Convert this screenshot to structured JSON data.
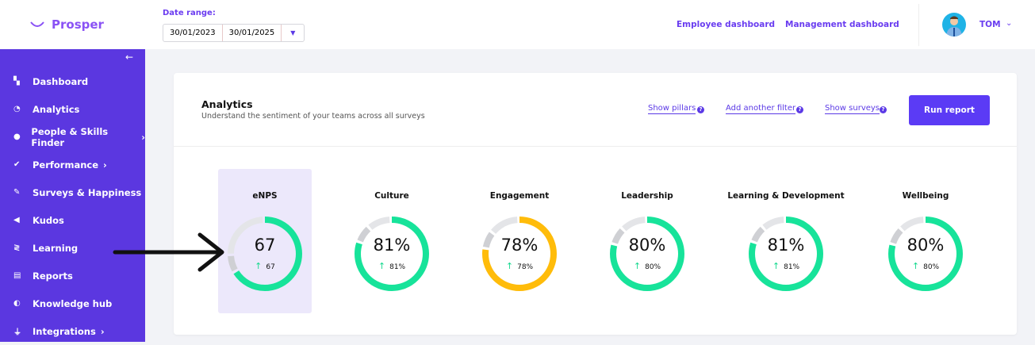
{
  "header": {
    "brand": "Prosper",
    "date_range_label": "Date range:",
    "date_from": "30/01/2023",
    "date_to": "30/01/2025",
    "links": [
      "Employee dashboard",
      "Management dashboard"
    ],
    "user_name": "TOM"
  },
  "sidebar": {
    "items": [
      {
        "label": "Dashboard",
        "icon": "dashboard-icon",
        "glyph": "▚",
        "chevron": false
      },
      {
        "label": "Analytics",
        "icon": "pie-chart-icon",
        "glyph": "◔",
        "chevron": false
      },
      {
        "label": "People & Skills Finder",
        "icon": "person-icon",
        "glyph": "●",
        "chevron": true
      },
      {
        "label": "Performance",
        "icon": "checks-icon",
        "glyph": "✔",
        "chevron": true
      },
      {
        "label": "Surveys & Happiness",
        "icon": "edit-icon",
        "glyph": "✎",
        "chevron": false
      },
      {
        "label": "Kudos",
        "icon": "megaphone-icon",
        "glyph": "◀",
        "chevron": false
      },
      {
        "label": "Learning",
        "icon": "learning-icon",
        "glyph": "≷",
        "chevron": false
      },
      {
        "label": "Reports",
        "icon": "document-icon",
        "glyph": "▤",
        "chevron": false
      },
      {
        "label": "Knowledge hub",
        "icon": "brain-icon",
        "glyph": "◐",
        "chevron": false
      },
      {
        "label": "Integrations",
        "icon": "plug-icon",
        "glyph": "⏚",
        "chevron": true
      }
    ]
  },
  "analytics": {
    "title": "Analytics",
    "subtitle": "Understand the sentiment of your teams across all surveys",
    "filters": [
      "Show pillars",
      "Add another filter",
      "Show surveys"
    ],
    "run_label": "Run report",
    "metrics": [
      {
        "title": "eNPS",
        "value": "67",
        "trend": "67",
        "fraction": 0.67,
        "color": "#17e39a",
        "selected": true
      },
      {
        "title": "Culture",
        "value": "81%",
        "trend": "81%",
        "fraction": 0.81,
        "color": "#17e39a"
      },
      {
        "title": "Engagement",
        "value": "78%",
        "trend": "78%",
        "fraction": 0.78,
        "color": "#ffbc0a"
      },
      {
        "title": "Leadership",
        "value": "80%",
        "trend": "80%",
        "fraction": 0.8,
        "color": "#17e39a"
      },
      {
        "title": "Learning & Development",
        "value": "81%",
        "trend": "81%",
        "fraction": 0.81,
        "color": "#17e39a"
      },
      {
        "title": "Wellbeing",
        "value": "80%",
        "trend": "80%",
        "fraction": 0.8,
        "color": "#17e39a"
      }
    ]
  },
  "colors": {
    "brand": "#5b37e0",
    "button": "#5b3bf5",
    "positive": "#17e39a",
    "warning": "#ffbc0a"
  }
}
